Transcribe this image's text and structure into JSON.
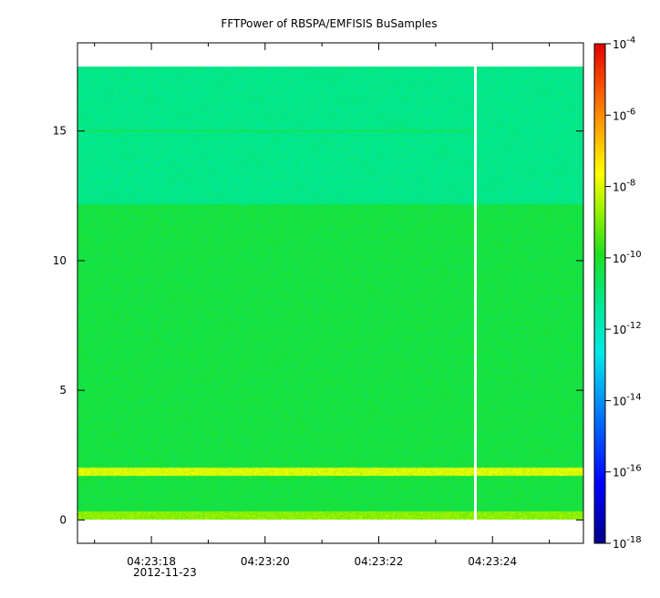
{
  "chart_data": {
    "type": "heatmap",
    "title": "FFTPower of RBSPA/EMFISIS  BuSamples",
    "xlabel": "",
    "ylabel": "",
    "x_ticks": [
      "04:23:18",
      "04:23:20",
      "04:23:22",
      "04:23:24"
    ],
    "x_sublabel": "2012-11-23",
    "x_range_seconds": [
      16.7,
      25.6
    ],
    "y_ticks": [
      0,
      5,
      10,
      15
    ],
    "ylim": [
      -0.9,
      18.4
    ],
    "data_time_range_seconds": [
      16.7,
      25.6
    ],
    "data_freq_range": [
      0,
      17.5
    ],
    "colorbar": {
      "scale": "log",
      "range": [
        "1e-18",
        "1e-4"
      ],
      "tick_labels": [
        {
          "base": "10",
          "exp": "-4"
        },
        {
          "base": "10",
          "exp": "-6"
        },
        {
          "base": "10",
          "exp": "-8"
        },
        {
          "base": "10",
          "exp": "-10"
        },
        {
          "base": "10",
          "exp": "-12"
        },
        {
          "base": "10",
          "exp": "-14"
        },
        {
          "base": "10",
          "exp": "-16"
        },
        {
          "base": "10",
          "exp": "-18"
        }
      ]
    },
    "features": [
      {
        "kind": "band",
        "freq_range": [
          0,
          0.3
        ],
        "level_log10": -8.8
      },
      {
        "kind": "band",
        "freq_range": [
          1.7,
          2.0
        ],
        "level_log10": -8.0
      },
      {
        "kind": "background",
        "freq_range": [
          0.3,
          12.2
        ],
        "level_log10": -10.3
      },
      {
        "kind": "background",
        "freq_range": [
          12.2,
          17.5
        ],
        "level_log10": -11.2
      },
      {
        "kind": "line",
        "freq": 15.0,
        "level_log10": -10.5
      },
      {
        "kind": "gap",
        "time": 23.7
      }
    ],
    "grid": false
  }
}
